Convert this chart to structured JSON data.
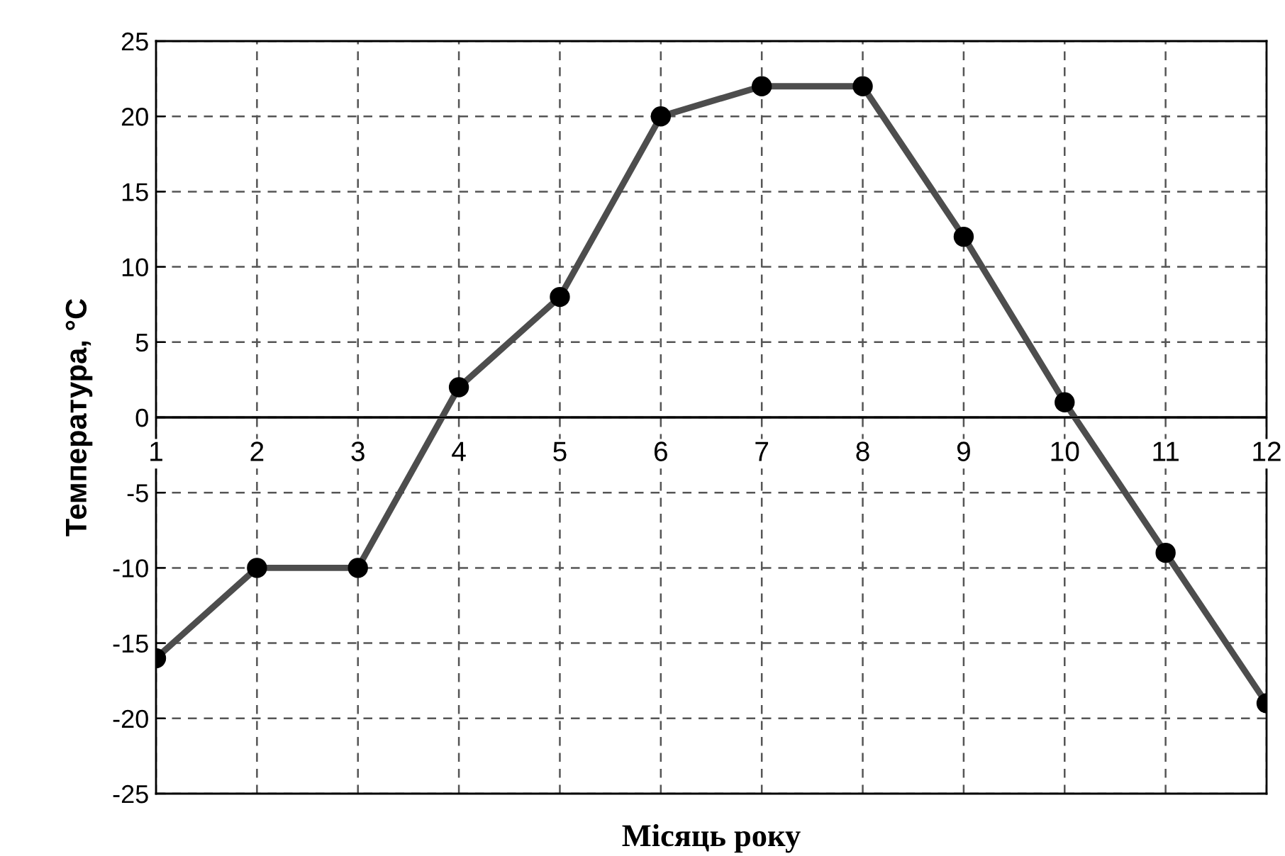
{
  "chart_data": {
    "type": "line",
    "xlabel": "Місяць року",
    "ylabel": "Температура, °C",
    "x": [
      1,
      2,
      3,
      4,
      5,
      6,
      7,
      8,
      9,
      10,
      11,
      12
    ],
    "series": [
      {
        "color": "#4d4d4d",
        "values": [
          -16,
          -10,
          -10,
          2,
          8,
          20,
          22,
          22,
          12,
          1,
          -9,
          -19
        ]
      }
    ],
    "xlim": [
      1,
      12
    ],
    "xticks": [
      1,
      2,
      3,
      4,
      5,
      6,
      7,
      8,
      9,
      10,
      11,
      12
    ],
    "ylim": [
      -25,
      25
    ],
    "yticks": [
      -25,
      -20,
      -15,
      -10,
      -5,
      0,
      5,
      10,
      15,
      20,
      25
    ],
    "ref_lines": [
      {
        "axis": "y",
        "value": 0,
        "color": "#000000",
        "line_style": "solid"
      }
    ],
    "grid": true,
    "marker": "circle",
    "line_style": "solid"
  }
}
